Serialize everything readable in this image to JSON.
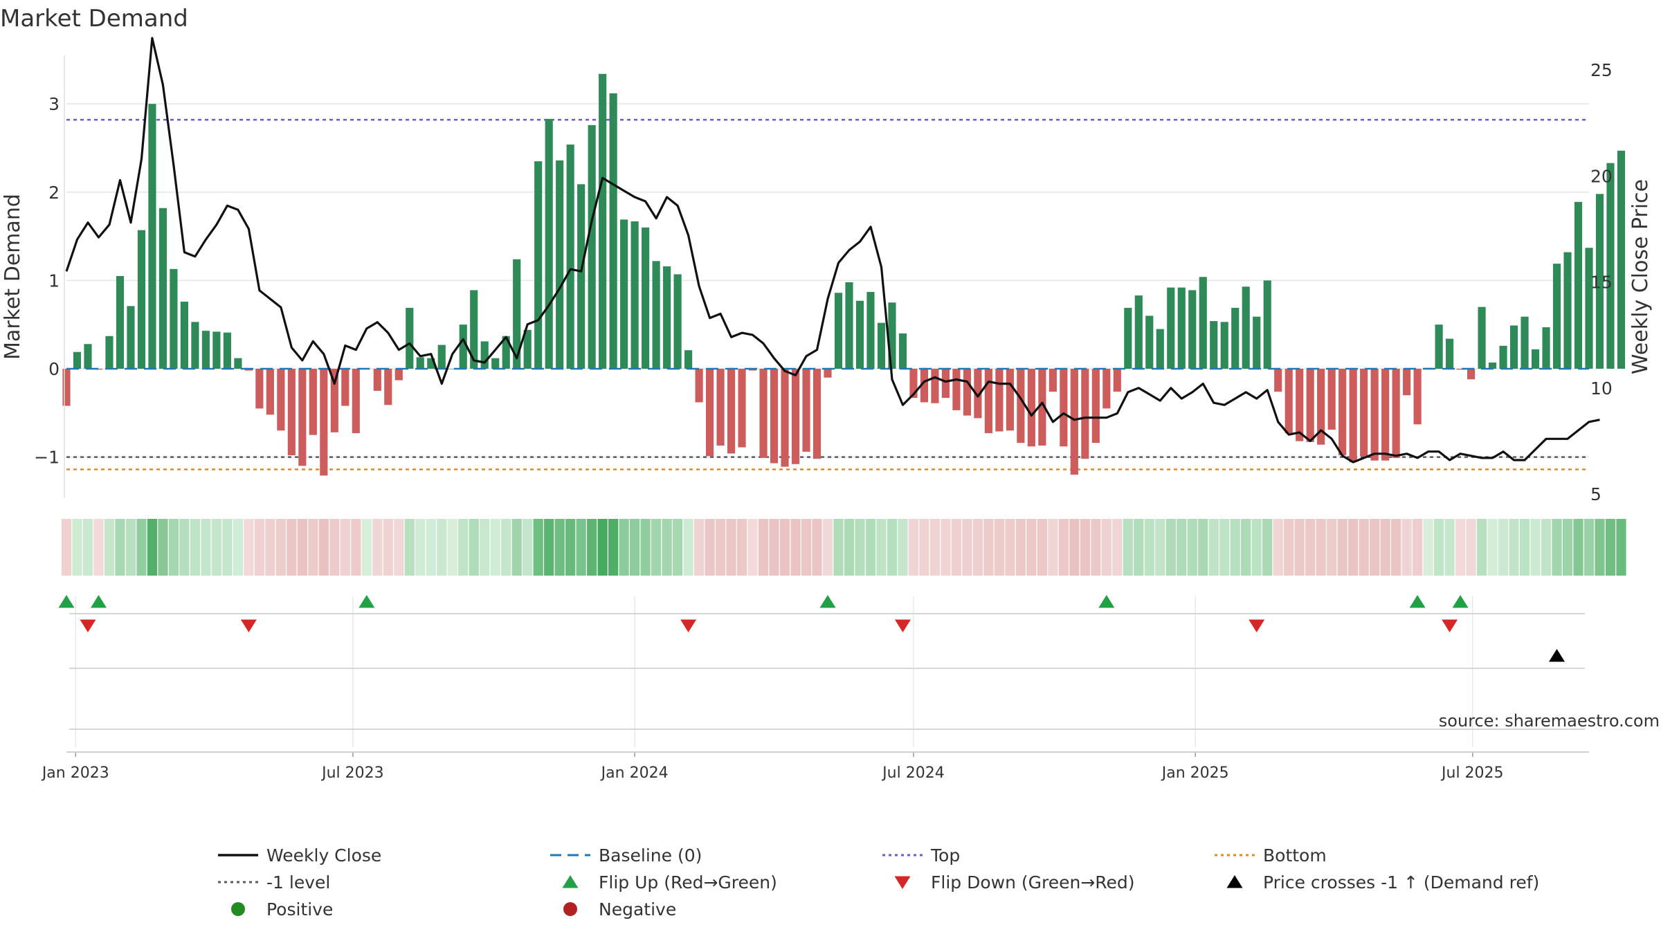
{
  "title": "Market Demand",
  "source": "source: sharemaestro.com",
  "colors": {
    "positive": "#2e8b57",
    "negative": "#cd5c5c",
    "close": "#111111",
    "baseline": "#1f77b4",
    "top": "#6a5acd",
    "bottom": "#e08a1e",
    "minus1": "#555a66",
    "flip_up": "#22a045",
    "flip_down": "#d62728",
    "cross": "#000000",
    "grid": "#e4e4e4",
    "legend_positive": "#228b22",
    "legend_negative": "#b22222"
  },
  "chart_data": {
    "type": "bar",
    "title": "Market Demand",
    "ylabel": "Market Demand",
    "y2label": "Weekly Close Price",
    "ylim": [
      -1.45,
      3.55
    ],
    "y2lim": [
      5,
      25
    ],
    "yticks": [
      3,
      2,
      1,
      0,
      -1
    ],
    "ytick_labels": [
      "3",
      "2",
      "1",
      "0",
      "−1"
    ],
    "y2ticks": [
      25,
      20,
      15,
      10,
      5
    ],
    "y2tick_labels": [
      "25",
      "20",
      "15",
      "10",
      "5"
    ],
    "x_start": "2022-12-26",
    "x_end": "2025-09-15",
    "xticks": [
      {
        "date": "2023-01-01",
        "label": "Jan 2023"
      },
      {
        "date": "2023-07-01",
        "label": "Jul 2023"
      },
      {
        "date": "2024-01-01",
        "label": "Jan 2024"
      },
      {
        "date": "2024-07-01",
        "label": "Jul 2024"
      },
      {
        "date": "2025-01-01",
        "label": "Jan 2025"
      },
      {
        "date": "2025-07-01",
        "label": "Jul 2025"
      }
    ],
    "first_week": "2022-12-26",
    "week_days": 7,
    "reference_lines": {
      "top": 2.82,
      "bottom": -1.14,
      "minus_one": -1.0,
      "baseline": 0
    },
    "series": [
      {
        "name": "Market Demand",
        "kind": "bar",
        "values": [
          -0.42,
          0.19,
          0.28,
          -0.01,
          0.37,
          1.05,
          0.71,
          1.57,
          3.0,
          1.82,
          1.13,
          0.76,
          0.53,
          0.43,
          0.42,
          0.41,
          0.12,
          -0.02,
          -0.45,
          -0.52,
          -0.7,
          -0.98,
          -1.1,
          -0.75,
          -1.21,
          -0.72,
          -0.42,
          -0.73,
          0.0,
          -0.25,
          -0.41,
          -0.13,
          0.69,
          0.13,
          0.12,
          0.27,
          0.0,
          0.5,
          0.89,
          0.31,
          0.12,
          0.37,
          1.24,
          0.44,
          2.35,
          2.83,
          2.36,
          2.54,
          2.09,
          2.76,
          3.34,
          3.12,
          1.69,
          1.67,
          1.6,
          1.22,
          1.16,
          1.07,
          0.21,
          -0.38,
          -0.99,
          -0.87,
          -0.96,
          -0.89,
          -0.02,
          -1.01,
          -1.07,
          -1.11,
          -1.08,
          -0.94,
          -1.02,
          -0.1,
          0.86,
          0.98,
          0.77,
          0.87,
          0.52,
          0.75,
          0.4,
          -0.33,
          -0.38,
          -0.39,
          -0.33,
          -0.47,
          -0.53,
          -0.56,
          -0.73,
          -0.71,
          -0.7,
          -0.84,
          -0.88,
          -0.87,
          -0.26,
          -0.88,
          -1.2,
          -1.02,
          -0.84,
          -0.45,
          -0.26,
          0.69,
          0.83,
          0.6,
          0.45,
          0.92,
          0.92,
          0.89,
          1.04,
          0.54,
          0.53,
          0.69,
          0.93,
          0.59,
          1.0,
          -0.26,
          -0.73,
          -0.82,
          -0.83,
          -0.86,
          -0.69,
          -0.98,
          -1.06,
          -0.99,
          -1.04,
          -1.04,
          -1.01,
          -0.3,
          -0.63,
          0.01,
          0.5,
          0.34,
          -0.01,
          -0.12,
          0.7,
          0.07,
          0.26,
          0.49,
          0.59,
          0.22,
          0.47,
          1.19,
          1.32,
          1.89,
          1.37,
          1.98,
          2.33,
          2.47
        ]
      },
      {
        "name": "Weekly Close",
        "kind": "line",
        "axis": "right",
        "values": [
          15.5,
          17.0,
          17.8,
          17.1,
          17.7,
          19.8,
          17.8,
          20.8,
          26.5,
          24.3,
          20.5,
          16.4,
          16.2,
          17.0,
          17.7,
          18.6,
          18.4,
          17.5,
          14.6,
          14.2,
          13.8,
          11.9,
          11.3,
          12.2,
          11.6,
          10.2,
          12.0,
          11.8,
          12.8,
          13.1,
          12.6,
          11.8,
          12.1,
          11.5,
          11.6,
          10.2,
          11.6,
          12.3,
          11.3,
          11.2,
          11.8,
          12.4,
          11.4,
          13.0,
          13.2,
          13.9,
          14.7,
          15.6,
          15.5,
          17.9,
          19.9,
          19.6,
          19.3,
          19.0,
          18.8,
          18.0,
          19.0,
          18.6,
          17.2,
          14.8,
          13.3,
          13.5,
          12.4,
          12.6,
          12.5,
          12.1,
          11.4,
          10.8,
          10.6,
          11.5,
          11.8,
          14.2,
          15.9,
          16.5,
          16.9,
          17.6,
          15.7,
          10.4,
          9.2,
          9.7,
          10.3,
          10.5,
          10.3,
          10.4,
          10.3,
          9.6,
          10.3,
          10.2,
          10.2,
          9.5,
          8.7,
          9.3,
          8.4,
          8.8,
          8.5,
          8.6,
          8.6,
          8.6,
          8.8,
          9.8,
          10.0,
          9.7,
          9.4,
          10.0,
          9.5,
          9.8,
          10.2,
          9.3,
          9.2,
          9.5,
          9.8,
          9.5,
          9.9,
          8.4,
          7.8,
          7.9,
          7.5,
          8.0,
          7.6,
          6.8,
          6.5,
          6.7,
          6.9,
          6.9,
          6.8,
          6.9,
          6.7,
          7.0,
          7.0,
          6.6,
          6.9,
          6.8,
          6.7,
          6.7,
          7.0,
          6.6,
          6.6,
          7.1,
          7.6,
          7.6,
          7.6,
          8.0,
          8.4,
          8.5
        ]
      }
    ],
    "flip_up_weeks": [
      0,
      3,
      28,
      71,
      97,
      126,
      130
    ],
    "flip_down_weeks": [
      2,
      17,
      58,
      78,
      111,
      129
    ],
    "price_cross_weeks": [
      139
    ],
    "legend": [
      {
        "label": "Weekly Close",
        "style": "line",
        "color_key": "close"
      },
      {
        "label": "Baseline (0)",
        "style": "dash",
        "color_key": "baseline"
      },
      {
        "label": "Top",
        "style": "dot",
        "color_key": "top"
      },
      {
        "label": "Bottom",
        "style": "dot",
        "color_key": "bottom"
      },
      {
        "label": "-1 level",
        "style": "dot",
        "color_key": "minus1"
      },
      {
        "label": "Flip Up (Red→Green)",
        "style": "tri-up",
        "color_key": "flip_up"
      },
      {
        "label": "Flip Down (Green→Red)",
        "style": "tri-down",
        "color_key": "flip_down"
      },
      {
        "label": "Price crosses -1 ↑ (Demand ref)",
        "style": "tri-up",
        "color_key": "cross"
      },
      {
        "label": "Positive",
        "style": "circle",
        "color_key": "legend_positive"
      },
      {
        "label": "Negative",
        "style": "circle",
        "color_key": "legend_negative"
      }
    ]
  }
}
